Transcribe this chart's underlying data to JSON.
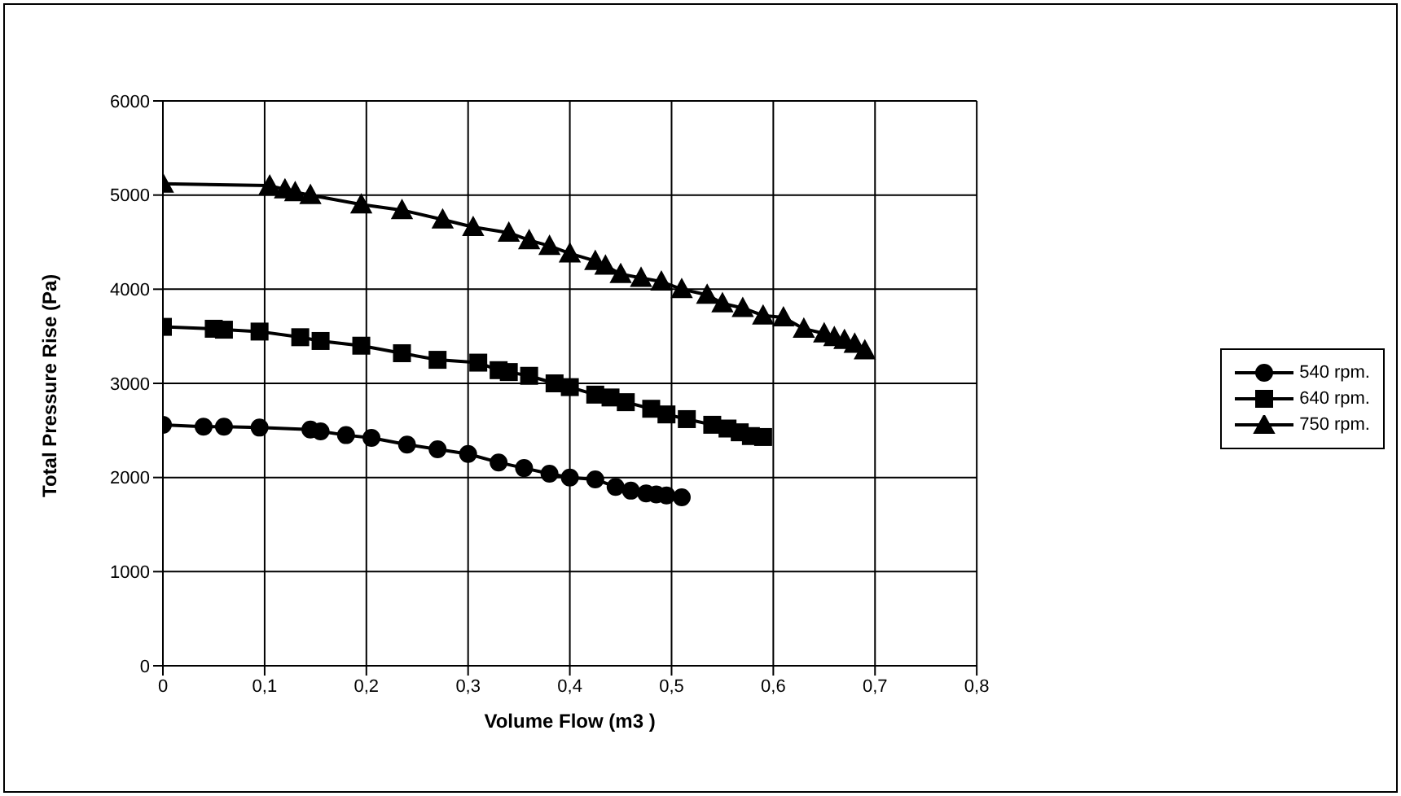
{
  "chart_data": {
    "type": "line",
    "xlabel": "Volume Flow (m3 )",
    "ylabel": "Total Pressure Rise (Pa)",
    "xlim": [
      0,
      0.8
    ],
    "xticks": [
      0,
      {
        "value": 0.1,
        "label": "0,1"
      },
      {
        "value": 0.2,
        "label": "0,2"
      },
      {
        "value": 0.3,
        "label": "0,3"
      },
      {
        "value": 0.4,
        "label": "0,4"
      },
      {
        "value": 0.5,
        "label": "0,5"
      },
      {
        "value": 0.6,
        "label": "0,6"
      },
      {
        "value": 0.7,
        "label": "0,7"
      },
      {
        "value": 0.8,
        "label": "0,8"
      }
    ],
    "ylim": [
      0,
      6000
    ],
    "yticks": [
      0,
      1000,
      2000,
      3000,
      4000,
      5000,
      6000
    ],
    "grid": true,
    "legend": "right",
    "line_style": "solid",
    "series": [
      {
        "name": "540 rpm.",
        "color": "#000000",
        "marker": "circle",
        "x": [
          0,
          0.04,
          0.06,
          0.095,
          0.145,
          0.155,
          0.18,
          0.205,
          0.24,
          0.27,
          0.3,
          0.33,
          0.355,
          0.38,
          0.4,
          0.425,
          0.445,
          0.46,
          0.475,
          0.485,
          0.495,
          0.51
        ],
        "values": [
          2560,
          2540,
          2540,
          2530,
          2510,
          2490,
          2450,
          2420,
          2350,
          2300,
          2250,
          2160,
          2100,
          2040,
          2000,
          1980,
          1900,
          1860,
          1830,
          1820,
          1810,
          1790
        ]
      },
      {
        "name": "640 rpm.",
        "color": "#000000",
        "marker": "square",
        "x": [
          0,
          0.05,
          0.06,
          0.095,
          0.135,
          0.155,
          0.195,
          0.235,
          0.27,
          0.31,
          0.33,
          0.34,
          0.36,
          0.385,
          0.4,
          0.425,
          0.44,
          0.455,
          0.48,
          0.495,
          0.515,
          0.54,
          0.555,
          0.567,
          0.578,
          0.59
        ],
        "values": [
          3600,
          3580,
          3570,
          3550,
          3490,
          3450,
          3400,
          3320,
          3250,
          3220,
          3140,
          3120,
          3080,
          3000,
          2960,
          2880,
          2850,
          2800,
          2730,
          2670,
          2620,
          2560,
          2520,
          2480,
          2440,
          2430
        ]
      },
      {
        "name": "750 rpm.",
        "color": "#000000",
        "marker": "triangle",
        "x": [
          0,
          0.105,
          0.12,
          0.13,
          0.145,
          0.195,
          0.235,
          0.275,
          0.305,
          0.34,
          0.36,
          0.38,
          0.4,
          0.425,
          0.435,
          0.45,
          0.47,
          0.49,
          0.51,
          0.535,
          0.55,
          0.57,
          0.59,
          0.61,
          0.63,
          0.65,
          0.66,
          0.67,
          0.68,
          0.69
        ],
        "values": [
          5120,
          5100,
          5060,
          5030,
          5000,
          4900,
          4840,
          4740,
          4660,
          4600,
          4520,
          4460,
          4380,
          4300,
          4250,
          4160,
          4120,
          4080,
          4000,
          3940,
          3850,
          3800,
          3720,
          3700,
          3580,
          3530,
          3490,
          3460,
          3420,
          3350
        ]
      }
    ]
  }
}
